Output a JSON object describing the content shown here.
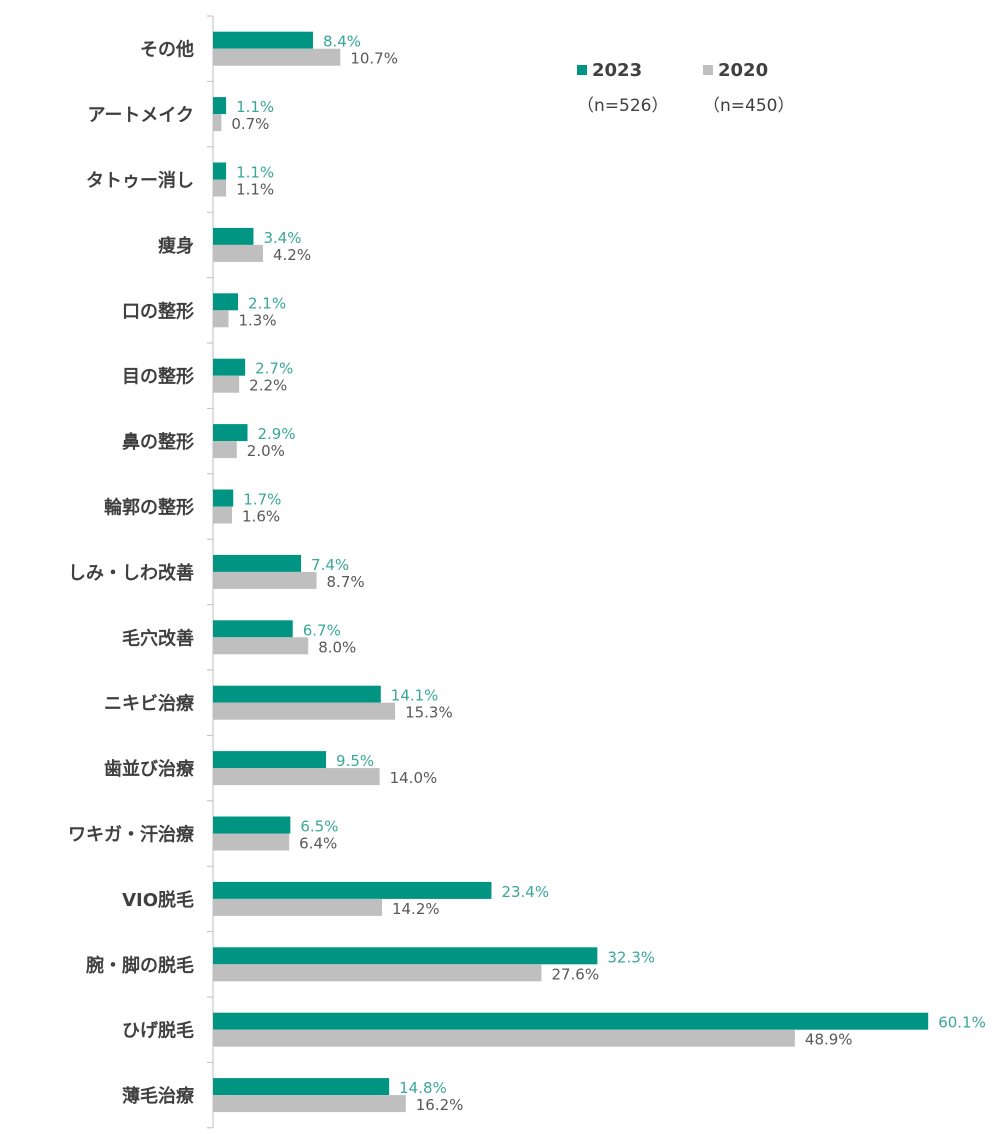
{
  "chart_data": {
    "type": "bar",
    "orientation": "horizontal",
    "categories": [
      "その他",
      "アートメイク",
      "タトゥー消し",
      "痩身",
      "口の整形",
      "目の整形",
      "鼻の整形",
      "輪郭の整形",
      "しみ・しわ改善",
      "毛穴改善",
      "ニキビ治療",
      "歯並び治療",
      "ワキガ・汗治療",
      "VIO脱毛",
      "腕・脚の脱毛",
      "ひげ脱毛",
      "薄毛治療"
    ],
    "series": [
      {
        "name": "2023",
        "n_label": "（n=526）",
        "color": "#009483",
        "label_color": "#3aa898",
        "values": [
          8.4,
          1.1,
          1.1,
          3.4,
          2.1,
          2.7,
          2.9,
          1.7,
          7.4,
          6.7,
          14.1,
          9.5,
          6.5,
          23.4,
          32.3,
          60.1,
          14.8
        ]
      },
      {
        "name": "2020",
        "n_label": "（n=450）",
        "color": "#bfbfbf",
        "label_color": "#595959",
        "values": [
          10.7,
          0.7,
          1.1,
          4.2,
          1.3,
          2.2,
          2.0,
          1.6,
          8.7,
          8.0,
          15.3,
          14.0,
          6.4,
          14.2,
          27.6,
          48.9,
          16.2
        ]
      }
    ],
    "value_suffix": "%",
    "legend_position": "top-right",
    "grid": false,
    "xlim": [
      0,
      60.1
    ]
  }
}
